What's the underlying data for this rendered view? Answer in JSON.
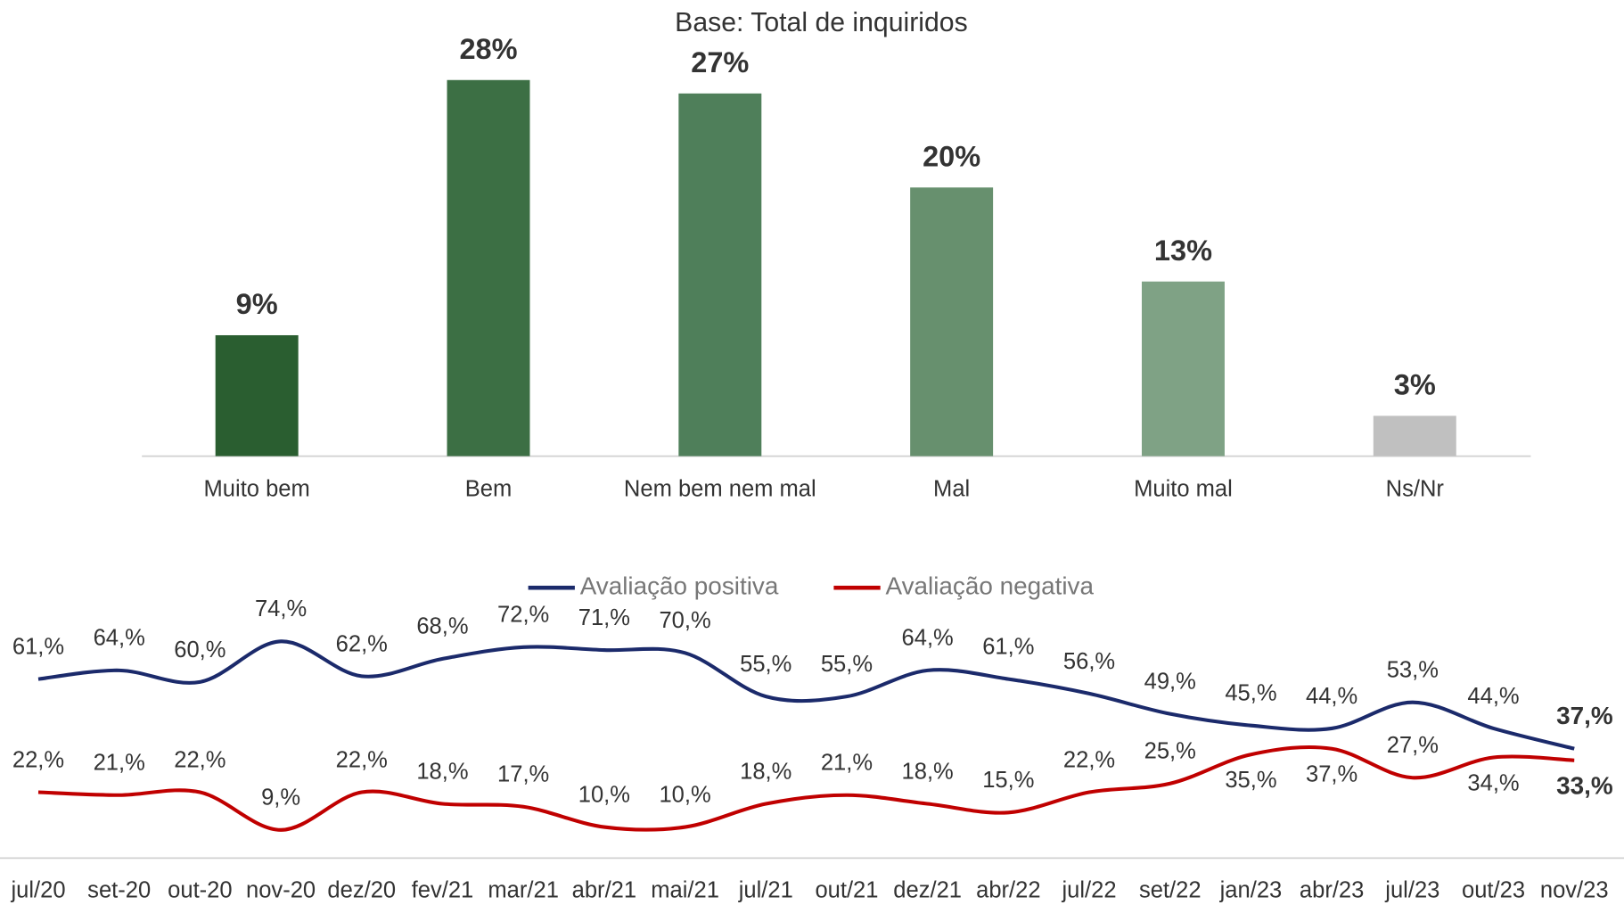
{
  "chart_data": [
    {
      "type": "bar",
      "title": "Base: Total de inquiridos",
      "categories": [
        "Muito bem",
        "Bem",
        "Nem bem nem mal",
        "Mal",
        "Muito mal",
        "Ns/Nr"
      ],
      "values": [
        9,
        28,
        27,
        20,
        13,
        3
      ],
      "value_labels": [
        "9%",
        "28%",
        "27%",
        "20%",
        "13%",
        "3%"
      ],
      "colors": [
        "#2a5e30",
        "#3c6f44",
        "#4f7f5a",
        "#67906e",
        "#7fa285",
        "#c0c0c0"
      ],
      "ylim": [
        0,
        28
      ]
    },
    {
      "type": "line",
      "categories": [
        "jul/20",
        "set-20",
        "out-20",
        "nov-20",
        "dez/20",
        "fev/21",
        "mar/21",
        "abr/21",
        "mai/21",
        "jul/21",
        "out/21",
        "dez/21",
        "abr/22",
        "jul/22",
        "set/22",
        "jan/23",
        "abr/23",
        "jul/23",
        "out/23",
        "nov/23"
      ],
      "series": [
        {
          "name": "Avaliação positiva",
          "color": "#1b2a6b",
          "values": [
            61,
            64,
            60,
            74,
            62,
            68,
            72,
            71,
            70,
            55,
            55,
            64,
            61,
            56,
            49,
            45,
            44,
            53,
            44,
            37
          ],
          "value_labels": [
            "61,%",
            "64,%",
            "60,%",
            "74,%",
            "62,%",
            "68,%",
            "72,%",
            "71,%",
            "70,%",
            "55,%",
            "55,%",
            "64,%",
            "61,%",
            "56,%",
            "49,%",
            "45,%",
            "44,%",
            "53,%",
            "44,%",
            "37,%"
          ]
        },
        {
          "name": "Avaliação negativa",
          "color": "#c00000",
          "values": [
            22,
            21,
            22,
            9,
            22,
            18,
            17,
            10,
            10,
            18,
            21,
            18,
            15,
            22,
            25,
            35,
            37,
            27,
            34,
            33
          ],
          "value_labels": [
            "22,%",
            "21,%",
            "22,%",
            "9,%",
            "22,%",
            "18,%",
            "17,%",
            "10,%",
            "10,%",
            "18,%",
            "21,%",
            "18,%",
            "15,%",
            "22,%",
            "25,%",
            "35,%",
            "37,%",
            "27,%",
            "34,%",
            "33,%"
          ]
        }
      ],
      "ylim": [
        0,
        80
      ]
    }
  ]
}
